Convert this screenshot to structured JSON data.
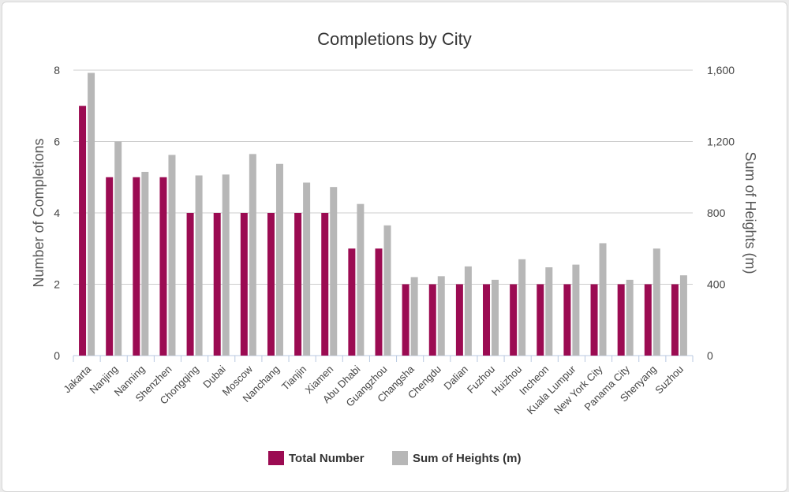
{
  "chart_data": {
    "type": "bar",
    "title": "Completions by City",
    "categories": [
      "Jakarta",
      "Nanjing",
      "Nanning",
      "Shenzhen",
      "Chongqing",
      "Dubai",
      "Moscow",
      "Nanchang",
      "Tianjin",
      "Xiamen",
      "Abu Dhabi",
      "Guangzhou",
      "Changsha",
      "Chengdu",
      "Dalian",
      "Fuzhou",
      "Huizhou",
      "Incheon",
      "Kuala Lumpur",
      "New York City",
      "Panama City",
      "Shenyang",
      "Suzhou"
    ],
    "series": [
      {
        "name": "Total Number",
        "axis": "left",
        "color": "#9b0b52",
        "values": [
          7,
          5,
          5,
          5,
          4,
          4,
          4,
          4,
          4,
          4,
          3,
          3,
          2,
          2,
          2,
          2,
          2,
          2,
          2,
          2,
          2,
          2,
          2
        ]
      },
      {
        "name": "Sum of Heights (m)",
        "axis": "right",
        "color": "#b7b7b7",
        "values": [
          1585,
          1200,
          1030,
          1125,
          1010,
          1015,
          1130,
          1075,
          970,
          945,
          850,
          730,
          440,
          445,
          500,
          425,
          540,
          495,
          510,
          630,
          425,
          600,
          450
        ]
      }
    ],
    "ylabel": "Number of Completions",
    "y2label": "Sum of Heights (m)",
    "ylim": [
      0,
      8
    ],
    "y2lim": [
      0,
      1600
    ],
    "yticks": [
      "0",
      "2",
      "4",
      "6",
      "8"
    ],
    "y2ticks": [
      "0",
      "400",
      "800",
      "1,200",
      "1,600"
    ],
    "grid": true,
    "legend_position": "bottom-center"
  }
}
